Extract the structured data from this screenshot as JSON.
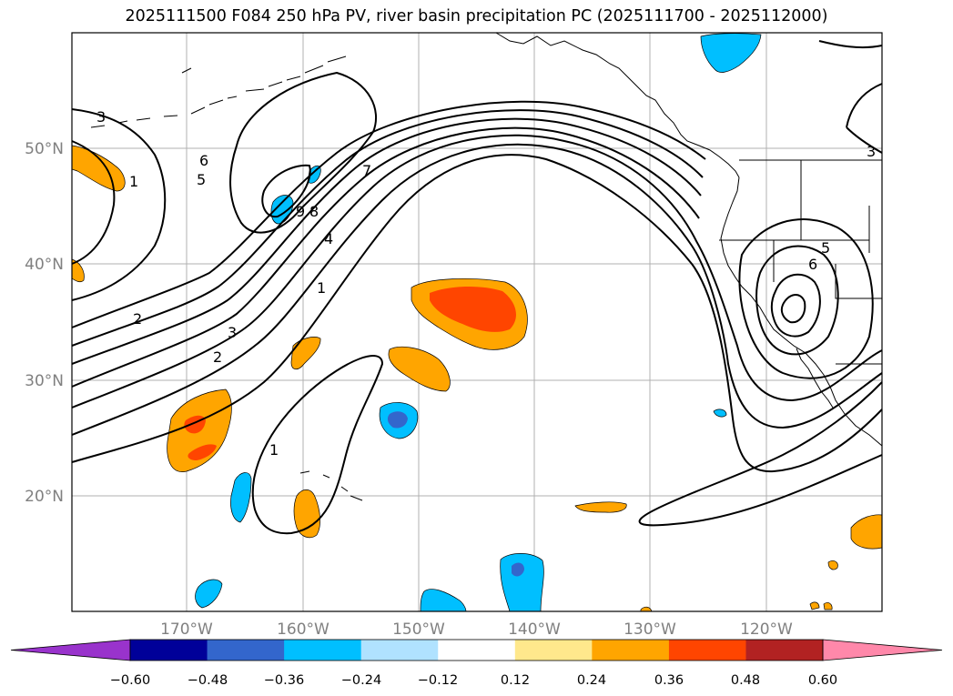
{
  "title": "2025111500 F084 250 hPa PV, river basin precipitation PC (2025111700 - 2025112000)",
  "axes": {
    "lat_labels": [
      "50°N",
      "40°N",
      "30°N",
      "20°N"
    ],
    "lon_labels": [
      "170°W",
      "160°W",
      "150°W",
      "140°W",
      "130°W",
      "120°W"
    ]
  },
  "contour_labels": [
    "3",
    "1",
    "6",
    "5",
    "9",
    "8",
    "7",
    "4",
    "1",
    "2",
    "3",
    "2",
    "1",
    "5",
    "6",
    "3"
  ],
  "colorbar": {
    "ticks": [
      "−0.60",
      "−0.48",
      "−0.36",
      "−0.24",
      "−0.12",
      "0.12",
      "0.24",
      "0.36",
      "0.48",
      "0.60"
    ],
    "colors": [
      "#9933cc",
      "#000099",
      "#3366cc",
      "#00bfff",
      "#b0e2ff",
      "#ffffff",
      "#ffe88c",
      "#ffa500",
      "#ff4500",
      "#b22222",
      "#ff88aa"
    ]
  }
}
